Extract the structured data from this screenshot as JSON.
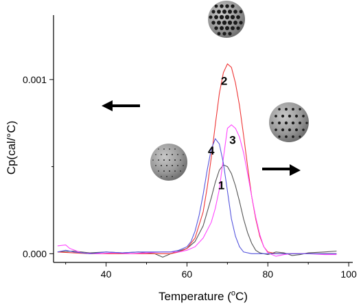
{
  "chart_data": {
    "type": "line",
    "xlabel_main": "Temperature (",
    "xlabel_sup": "o",
    "xlabel_end": "C)",
    "ylabel": "Cp(cal/°C)",
    "xlim": [
      27,
      101
    ],
    "ylim": [
      -5e-05,
      0.00137
    ],
    "x_ticks": [
      40,
      60,
      80,
      100
    ],
    "y_ticks": [
      0.0,
      0.001
    ],
    "y_tick_labels": [
      "0.000",
      "0.001"
    ],
    "series": [
      {
        "label": "1",
        "color": "#555555",
        "points": [
          [
            28,
            1e-05
          ],
          [
            32,
            1.5e-05
          ],
          [
            36,
            5e-06
          ],
          [
            40,
            1e-05
          ],
          [
            44,
            5e-06
          ],
          [
            48,
            1e-05
          ],
          [
            52,
            0.0
          ],
          [
            54,
            -2e-05
          ],
          [
            56,
            0.0
          ],
          [
            58,
            1.5e-05
          ],
          [
            60,
            3e-05
          ],
          [
            62,
            7e-05
          ],
          [
            64,
            0.00016
          ],
          [
            66,
            0.00032
          ],
          [
            67,
            0.00041
          ],
          [
            68,
            0.00048
          ],
          [
            69,
            0.00051
          ],
          [
            70,
            0.0005
          ],
          [
            71,
            0.00046
          ],
          [
            72,
            0.00039
          ],
          [
            73,
            0.0003
          ],
          [
            74,
            0.0002
          ],
          [
            75,
            0.00012
          ],
          [
            76,
            6e-05
          ],
          [
            77,
            2e-05
          ],
          [
            78,
            5e-06
          ],
          [
            80,
            -5e-06
          ],
          [
            82,
            1e-05
          ],
          [
            84,
            5e-06
          ],
          [
            86,
            -1e-05
          ],
          [
            88,
            -5e-06
          ],
          [
            90,
            5e-06
          ],
          [
            94,
            1e-05
          ],
          [
            97,
            1.5e-05
          ]
        ]
      },
      {
        "label": "2",
        "color": "#ee3333",
        "points": [
          [
            28,
            1e-05
          ],
          [
            32,
            5e-06
          ],
          [
            36,
            0.0
          ],
          [
            40,
            0.0
          ],
          [
            44,
            0.0
          ],
          [
            48,
            0.0
          ],
          [
            52,
            0.0
          ],
          [
            56,
            0.0
          ],
          [
            58,
            1e-05
          ],
          [
            60,
            3e-05
          ],
          [
            62,
            9e-05
          ],
          [
            64,
            0.00024
          ],
          [
            65,
            0.00038
          ],
          [
            66,
            0.00055
          ],
          [
            67,
            0.00074
          ],
          [
            68,
            0.00092
          ],
          [
            69,
            0.00104
          ],
          [
            70,
            0.00109
          ],
          [
            71,
            0.00107
          ],
          [
            72,
            0.00098
          ],
          [
            73,
            0.00085
          ],
          [
            74,
            0.00068
          ],
          [
            75,
            0.0005
          ],
          [
            76,
            0.00033
          ],
          [
            77,
            0.0002
          ],
          [
            78,
            0.0001
          ],
          [
            79,
            4e-05
          ],
          [
            80,
            1e-05
          ],
          [
            82,
            0.0
          ],
          [
            86,
            0.0
          ],
          [
            90,
            0.0
          ],
          [
            94,
            0.0
          ],
          [
            97,
            0.0
          ]
        ]
      },
      {
        "label": "3",
        "color": "#ff44ff",
        "points": [
          [
            28,
            4.5e-05
          ],
          [
            30,
            5e-05
          ],
          [
            31,
            3e-05
          ],
          [
            34,
            5e-06
          ],
          [
            38,
            0.0
          ],
          [
            42,
            5e-06
          ],
          [
            46,
            0.0
          ],
          [
            50,
            5e-06
          ],
          [
            54,
            1e-05
          ],
          [
            58,
            1e-05
          ],
          [
            60,
            2e-05
          ],
          [
            62,
            4e-05
          ],
          [
            64,
            9e-05
          ],
          [
            66,
            0.00018
          ],
          [
            67,
            0.00026
          ],
          [
            68,
            0.00037
          ],
          [
            69,
            0.00055
          ],
          [
            70,
            0.00072
          ],
          [
            71,
            0.00074
          ],
          [
            72,
            0.00072
          ],
          [
            73,
            0.00067
          ],
          [
            74,
            0.00058
          ],
          [
            75,
            0.00046
          ],
          [
            76,
            0.00033
          ],
          [
            77,
            0.00021
          ],
          [
            78,
            0.00011
          ],
          [
            79,
            4e-05
          ],
          [
            80,
            5e-06
          ],
          [
            82,
            -1.5e-05
          ],
          [
            84,
            -5e-06
          ],
          [
            86,
            0.0
          ],
          [
            90,
            0.0
          ],
          [
            94,
            -5e-06
          ],
          [
            97,
            -5e-06
          ]
        ]
      },
      {
        "label": "4",
        "color": "#5555dd",
        "points": [
          [
            28,
            1e-05
          ],
          [
            30,
            2e-05
          ],
          [
            32,
            1e-05
          ],
          [
            36,
            0.0
          ],
          [
            40,
            1e-05
          ],
          [
            44,
            5e-06
          ],
          [
            48,
            1e-05
          ],
          [
            52,
            1e-05
          ],
          [
            56,
            1e-05
          ],
          [
            58,
            2e-05
          ],
          [
            60,
            4e-05
          ],
          [
            61,
            7e-05
          ],
          [
            62,
            0.00013
          ],
          [
            63,
            0.00022
          ],
          [
            64,
            0.00034
          ],
          [
            65,
            0.00048
          ],
          [
            66,
            0.0006
          ],
          [
            67,
            0.00066
          ],
          [
            68,
            0.00063
          ],
          [
            69,
            0.00052
          ],
          [
            70,
            0.00036
          ],
          [
            71,
            0.0002
          ],
          [
            72,
            0.0001
          ],
          [
            73,
            4e-05
          ],
          [
            74,
            1e-05
          ],
          [
            76,
            0.0
          ],
          [
            80,
            0.0
          ],
          [
            84,
            0.0
          ],
          [
            88,
            0.0
          ],
          [
            92,
            0.0
          ],
          [
            97,
            0.0
          ]
        ]
      }
    ],
    "annotations": {
      "arrows": [
        {
          "name": "left-arrow",
          "direction": "left"
        },
        {
          "name": "right-arrow",
          "direction": "right"
        }
      ]
    }
  }
}
